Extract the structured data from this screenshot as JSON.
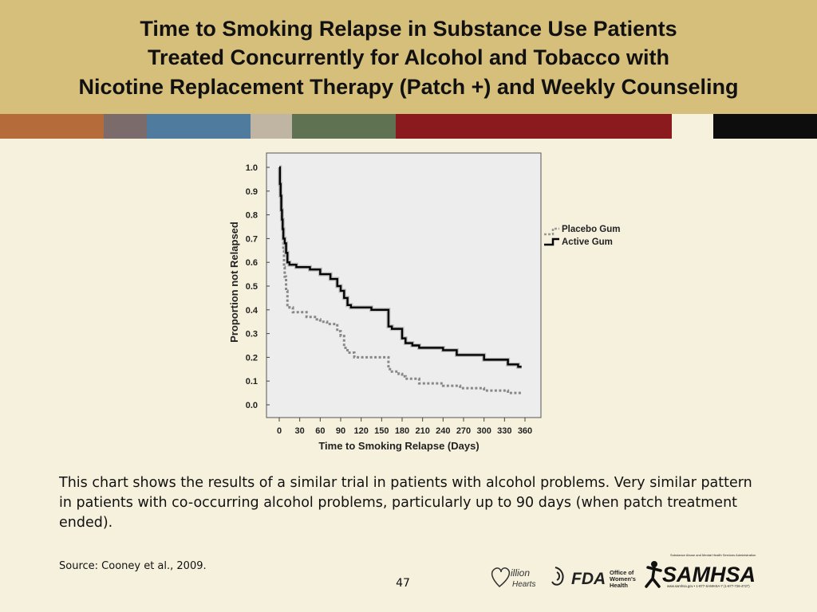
{
  "slide": {
    "title_lines": [
      "Time to Smoking Relapse in Substance Use Patients",
      "Treated Concurrently for Alcohol and Tobacco with",
      "Nicotine Replacement Therapy (Patch +) and Weekly Counseling"
    ],
    "body": "This chart shows the results of a similar trial in patients with alcohol problems. Very similar pattern in patients with co-occurring alcohol problems, particularly up to 90 days (when patch treatment ended).",
    "source": "Source: Cooney et al., 2009.",
    "page_number": "47"
  },
  "colors": {
    "title_bg": "#d6bf7a",
    "slide_bg": "#f6f1dd",
    "strip": [
      "#b56b3a",
      "#7b6b6b",
      "#4f7c9e",
      "#bfb5a2",
      "#5f7352",
      "#8b1a1e",
      "#f6f1dd",
      "#0d0d0d"
    ],
    "active_line": "#000000",
    "placebo_line": "#888888"
  },
  "logos": {
    "million_hearts": [
      "illion",
      "Hearts"
    ],
    "fda": "FDA",
    "womens_health": [
      "Office of",
      "Women's",
      "Health"
    ],
    "samhsa": "SAMHSA",
    "samhsa_top": "Substance Abuse and Mental Health Services Administration",
    "samhsa_bottom": "www.samhsa.gov • 1-877-SAMHSA-7 (1-877-726-4727)"
  },
  "chart_data": {
    "type": "line",
    "step": true,
    "xlabel": "Time to Smoking Relapse (Days)",
    "ylabel": "Proportion not Relapsed",
    "xlim": [
      0,
      360
    ],
    "ylim": [
      0,
      1
    ],
    "x_ticks": [
      "0",
      "30",
      "60",
      "90",
      "120",
      "150",
      "180",
      "210",
      "240",
      "270",
      "300",
      "330",
      "360"
    ],
    "y_ticks": [
      "0.0",
      "0.1",
      "0.2",
      "0.3",
      "0.4",
      "0.5",
      "0.6",
      "0.7",
      "0.8",
      "0.9",
      "1.0"
    ],
    "legend_position": "right",
    "series": [
      {
        "name": "Placebo Gum",
        "style": "dotted",
        "x": [
          0,
          1,
          2,
          3,
          4,
          5,
          6,
          7,
          8,
          10,
          12,
          15,
          20,
          25,
          40,
          55,
          60,
          70,
          85,
          90,
          95,
          100,
          110,
          140,
          160,
          165,
          175,
          180,
          185,
          205,
          240,
          265,
          300,
          335,
          355
        ],
        "y": [
          1.0,
          0.9,
          0.84,
          0.79,
          0.74,
          0.7,
          0.65,
          0.58,
          0.54,
          0.48,
          0.42,
          0.41,
          0.39,
          0.39,
          0.37,
          0.36,
          0.35,
          0.34,
          0.31,
          0.29,
          0.24,
          0.22,
          0.2,
          0.2,
          0.15,
          0.14,
          0.13,
          0.12,
          0.11,
          0.09,
          0.08,
          0.07,
          0.06,
          0.05,
          0.05
        ]
      },
      {
        "name": "Active Gum",
        "style": "solid",
        "x": [
          0,
          1,
          2,
          3,
          4,
          5,
          6,
          8,
          10,
          12,
          15,
          25,
          45,
          60,
          75,
          85,
          90,
          95,
          100,
          105,
          110,
          135,
          160,
          165,
          180,
          185,
          195,
          205,
          240,
          260,
          300,
          335,
          350,
          355
        ],
        "y": [
          1.0,
          0.93,
          0.88,
          0.82,
          0.78,
          0.74,
          0.7,
          0.68,
          0.64,
          0.6,
          0.59,
          0.58,
          0.57,
          0.55,
          0.53,
          0.5,
          0.48,
          0.45,
          0.42,
          0.41,
          0.41,
          0.4,
          0.33,
          0.32,
          0.28,
          0.26,
          0.25,
          0.24,
          0.23,
          0.21,
          0.19,
          0.17,
          0.16,
          0.16
        ]
      }
    ]
  }
}
